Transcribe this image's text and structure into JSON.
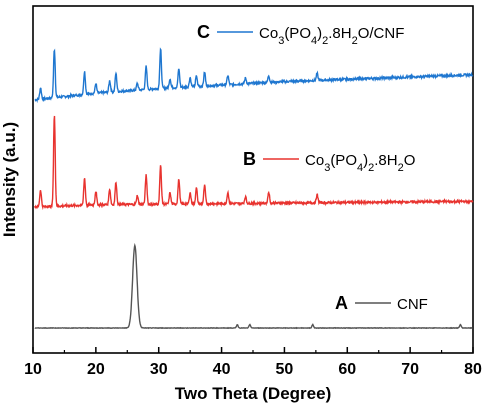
{
  "chart_data": {
    "type": "line",
    "xlabel": "Two Theta (Degree)",
    "ylabel": "Intensity (a.u.)",
    "xlim": [
      10,
      80
    ],
    "x_ticks": [
      10,
      20,
      30,
      40,
      50,
      60,
      70,
      80
    ],
    "x_tick_labels": [
      "10",
      "20",
      "30",
      "40",
      "50",
      "60",
      "70",
      "80"
    ],
    "y_ticks_shown": false,
    "grid": false,
    "series": [
      {
        "letter": "C",
        "name": "Co3(PO4)2.8H2O/CNF",
        "name_parts": [
          {
            "t": "Co",
            "s": "n"
          },
          {
            "t": "3",
            "s": "sub"
          },
          {
            "t": "(PO",
            "s": "n"
          },
          {
            "t": "4",
            "s": "sub"
          },
          {
            "t": ")",
            "s": "n"
          },
          {
            "t": "2",
            "s": "sub"
          },
          {
            "t": ".8H",
            "s": "n"
          },
          {
            "t": "2",
            "s": "sub"
          },
          {
            "t": "O/CNF",
            "s": "n"
          }
        ],
        "color": "#1f77d0",
        "baseline": [
          [
            10,
            0.0
          ],
          [
            15,
            0.03
          ],
          [
            20,
            0.06
          ],
          [
            30,
            0.1
          ],
          [
            40,
            0.13
          ],
          [
            50,
            0.16
          ],
          [
            60,
            0.18
          ],
          [
            70,
            0.2
          ],
          [
            80,
            0.22
          ]
        ],
        "peaks": [
          [
            11.2,
            0.1
          ],
          [
            13.4,
            0.42
          ],
          [
            18.2,
            0.2
          ],
          [
            20.0,
            0.08
          ],
          [
            22.2,
            0.1
          ],
          [
            23.2,
            0.16
          ],
          [
            26.6,
            0.06
          ],
          [
            28.0,
            0.2
          ],
          [
            30.3,
            0.34
          ],
          [
            31.8,
            0.08
          ],
          [
            33.2,
            0.16
          ],
          [
            35.0,
            0.08
          ],
          [
            36.0,
            0.09
          ],
          [
            37.3,
            0.12
          ],
          [
            41.0,
            0.08
          ],
          [
            43.8,
            0.05
          ],
          [
            47.5,
            0.06
          ],
          [
            55.2,
            0.06
          ]
        ]
      },
      {
        "letter": "B",
        "name": "Co3(PO4)2.8H2O",
        "name_parts": [
          {
            "t": "Co",
            "s": "n"
          },
          {
            "t": "3",
            "s": "sub"
          },
          {
            "t": "(PO",
            "s": "n"
          },
          {
            "t": "4",
            "s": "sub"
          },
          {
            "t": ")",
            "s": "n"
          },
          {
            "t": "2",
            "s": "sub"
          },
          {
            "t": ".8H",
            "s": "n"
          },
          {
            "t": "2",
            "s": "sub"
          },
          {
            "t": "O",
            "s": "n"
          }
        ],
        "color": "#e8332f",
        "baseline": [
          [
            10,
            0.0
          ],
          [
            20,
            0.02
          ],
          [
            40,
            0.03
          ],
          [
            60,
            0.04
          ],
          [
            80,
            0.05
          ]
        ],
        "peaks": [
          [
            11.2,
            0.15
          ],
          [
            13.4,
            0.8
          ],
          [
            18.2,
            0.24
          ],
          [
            20.0,
            0.12
          ],
          [
            22.2,
            0.14
          ],
          [
            23.2,
            0.2
          ],
          [
            26.6,
            0.08
          ],
          [
            28.0,
            0.26
          ],
          [
            30.3,
            0.34
          ],
          [
            31.8,
            0.1
          ],
          [
            33.2,
            0.22
          ],
          [
            35.0,
            0.1
          ],
          [
            36.0,
            0.14
          ],
          [
            37.3,
            0.16
          ],
          [
            41.0,
            0.1
          ],
          [
            43.8,
            0.06
          ],
          [
            47.5,
            0.1
          ],
          [
            55.2,
            0.07
          ]
        ]
      },
      {
        "letter": "A",
        "name": "CNF",
        "name_parts": [
          {
            "t": "CNF",
            "s": "n"
          }
        ],
        "color": "#555555",
        "baseline": [
          [
            10,
            0.0
          ],
          [
            80,
            0.0
          ]
        ],
        "peaks": [
          [
            26.2,
            0.75
          ],
          [
            42.5,
            0.03
          ],
          [
            44.5,
            0.03
          ],
          [
            54.5,
            0.03
          ],
          [
            78.0,
            0.03
          ]
        ]
      }
    ]
  }
}
